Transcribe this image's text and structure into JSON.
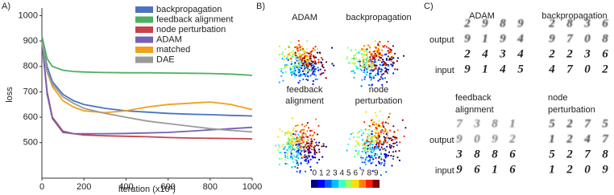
{
  "panel_labels": [
    "A)",
    "B)",
    "C)"
  ],
  "chart_data": {
    "type": "line",
    "x_label": "iteration (x10³)",
    "y_label": "loss",
    "x": [
      0,
      25,
      50,
      100,
      150,
      200,
      300,
      400,
      500,
      600,
      700,
      800,
      900,
      1000
    ],
    "series": [
      {
        "name": "backpropagation",
        "color": "#4a74c0",
        "values": [
          900,
          800,
          740,
          690,
          665,
          650,
          635,
          625,
          620,
          615,
          612,
          610,
          607,
          605
        ]
      },
      {
        "name": "feedback alignment",
        "color": "#4caf62",
        "values": [
          920,
          830,
          800,
          785,
          780,
          778,
          776,
          775,
          775,
          774,
          773,
          772,
          770,
          765
        ]
      },
      {
        "name": "node perturbation",
        "color": "#c8434b",
        "values": [
          900,
          700,
          600,
          545,
          535,
          530,
          527,
          525,
          523,
          520,
          518,
          517,
          516,
          515
        ]
      },
      {
        "name": "ADAM",
        "color": "#7462b4",
        "values": [
          900,
          690,
          595,
          540,
          535,
          535,
          535,
          536,
          538,
          540,
          545,
          550,
          555,
          560
        ]
      },
      {
        "name": "matched",
        "color": "#f0a01e",
        "values": [
          900,
          780,
          720,
          665,
          640,
          625,
          618,
          625,
          640,
          650,
          655,
          660,
          650,
          630
        ]
      },
      {
        "name": "DAE",
        "color": "#9a9a9a",
        "values": [
          900,
          780,
          730,
          680,
          655,
          635,
          615,
          600,
          585,
          575,
          565,
          555,
          548,
          542
        ]
      }
    ],
    "xlim": [
      0,
      1000
    ],
    "xticks": [
      0,
      200,
      400,
      600,
      800,
      1000
    ],
    "ylim": [
      360,
      1030
    ],
    "yticks": [
      500,
      600,
      700,
      800,
      900,
      1000
    ],
    "legend": "upper right"
  },
  "embedding": {
    "titles": [
      [
        "ADAM"
      ],
      [
        "backpropagation"
      ],
      [
        "feedback",
        "alignment"
      ],
      [
        "node",
        "perturbation"
      ]
    ],
    "colorbar_labels": [
      0,
      1,
      2,
      3,
      4,
      5,
      6,
      7,
      8,
      9
    ]
  },
  "reconstructions": {
    "output_label": "output",
    "input_label": "input",
    "groups": [
      {
        "title": [
          "ADAM"
        ],
        "output": [
          [
            "2",
            "9",
            "8",
            "9"
          ],
          [
            "9",
            "1",
            "9",
            "4"
          ]
        ],
        "input": [
          [
            "2",
            "4",
            "3",
            "4"
          ],
          [
            "9",
            "1",
            "4",
            "5"
          ]
        ]
      },
      {
        "title": [
          "backpropagation"
        ],
        "output": [
          [
            "2",
            "8",
            "3",
            "6"
          ],
          [
            "9",
            "7",
            "0",
            "8"
          ]
        ],
        "input": [
          [
            "2",
            "2",
            "3",
            "6"
          ],
          [
            "4",
            "7",
            "0",
            "2"
          ]
        ]
      },
      {
        "title": [
          "feedback",
          "alignment"
        ],
        "output": [
          [
            "7",
            "3",
            "8",
            "1"
          ],
          [
            "9",
            "0",
            "9",
            "2"
          ]
        ],
        "input": [
          [
            "3",
            "8",
            "8",
            "6"
          ],
          [
            "9",
            "6",
            "1",
            "6"
          ]
        ]
      },
      {
        "title": [
          "node",
          "perturbation"
        ],
        "output": [
          [
            "5",
            "2",
            "7",
            "5"
          ],
          [
            "1",
            "2",
            "4",
            "7"
          ]
        ],
        "input": [
          [
            "5",
            "2",
            "7",
            "8"
          ],
          [
            "1",
            "2",
            "0",
            "9"
          ]
        ]
      }
    ]
  }
}
